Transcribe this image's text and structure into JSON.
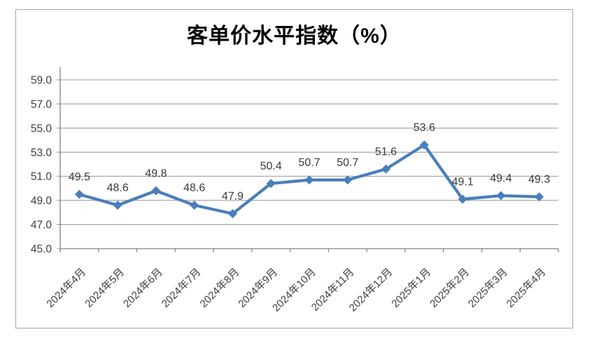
{
  "frame": {
    "border_color": "#a6a6a6",
    "background_color": "#ffffff"
  },
  "chart_data": {
    "type": "line",
    "title": "客单价水平指数（%）",
    "xlabel": "",
    "ylabel": "",
    "categories": [
      "2024年4月",
      "2024年5月",
      "2024年6月",
      "2024年7月",
      "2024年8月",
      "2024年9月",
      "2024年10月",
      "2024年11月",
      "2024年12月",
      "2025年1月",
      "2025年2月",
      "2025年3月",
      "2025年4月"
    ],
    "values": [
      49.5,
      48.6,
      49.8,
      48.6,
      47.9,
      50.4,
      50.7,
      50.7,
      51.6,
      53.6,
      49.1,
      49.4,
      49.3
    ],
    "data_labels": [
      "49.5",
      "48.6",
      "49.8",
      "48.6",
      "47.9",
      "50.4",
      "50.7",
      "50.7",
      "51.6",
      "53.6",
      "49.1",
      "49.4",
      "49.3"
    ],
    "ylim": [
      45,
      59
    ],
    "ytick_step": 2,
    "ytick_labels": [
      "45.0",
      "47.0",
      "49.0",
      "51.0",
      "53.0",
      "55.0",
      "57.0",
      "59.0"
    ],
    "grid": true,
    "legend": "none",
    "marker": "diamond",
    "line_color": "#4a7ebb",
    "gridline_color": "#9e9e9e",
    "axis_color": "#808080",
    "axis_label_color": "#404040",
    "data_label_color": "#3a3a3a",
    "title_color": "#000000"
  }
}
